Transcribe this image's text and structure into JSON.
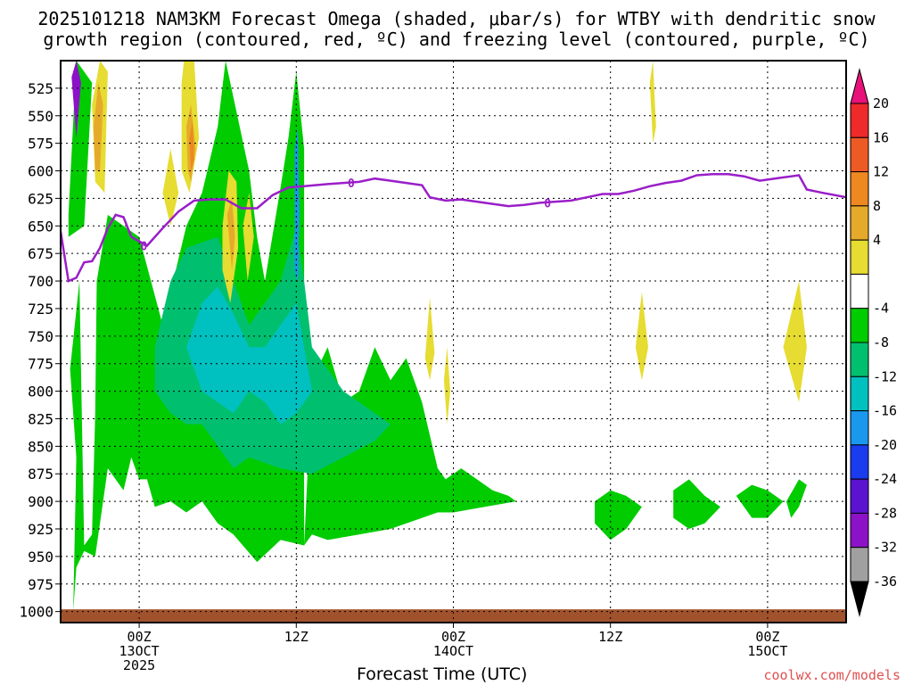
{
  "title_line1": "2025101218 NAM3KM Forecast Omega (shaded, μbar/s) for WTBY with dendritic snow",
  "title_line2": "growth region (contoured, red, ºC) and freezing level (contoured, purple, ºC)",
  "xlabel": "Forecast Time (UTC)",
  "credit": "coolwx.com/models",
  "chart_data": {
    "type": "heatmap",
    "y_axis": {
      "label": "",
      "ticks": [
        525,
        550,
        575,
        600,
        625,
        650,
        675,
        700,
        725,
        750,
        775,
        800,
        825,
        850,
        875,
        900,
        925,
        950,
        975,
        1000
      ],
      "range": [
        500,
        1010
      ],
      "inverted": true
    },
    "x_axis": {
      "range_hours": [
        -5,
        45
      ],
      "ticks": [
        {
          "hour": 0,
          "lines": [
            "00Z",
            "13OCT",
            "2025"
          ]
        },
        {
          "hour": 10,
          "lines": [
            "12Z"
          ]
        },
        {
          "hour": 20,
          "lines": [
            "00Z",
            "14OCT"
          ]
        },
        {
          "hour": 30,
          "lines": [
            "12Z"
          ]
        },
        {
          "hour": 40,
          "lines": [
            "00Z",
            "15OCT"
          ]
        }
      ]
    },
    "grid": true,
    "colorbar": {
      "labels": [
        "20",
        "16",
        "12",
        "8",
        "4",
        "-4",
        "-8",
        "-12",
        "-16",
        "-20",
        "-24",
        "-28",
        "-32",
        "-36"
      ],
      "colors": [
        "#e8127a",
        "#ee2a2a",
        "#ee5a24",
        "#ee8820",
        "#e6aa2a",
        "#e6dc32",
        "#ffffff",
        "#00cc00",
        "#00c070",
        "#00c0c0",
        "#1a98ee",
        "#1a3cee",
        "#5a14d0",
        "#8c12c8",
        "#a0a0a0",
        "#000000"
      ],
      "levels": [
        20,
        16,
        12,
        8,
        4,
        0,
        -4,
        -8,
        -12,
        -16,
        -20,
        -24,
        -28,
        -32,
        -36
      ]
    },
    "freezing_level": {
      "color": "#9a1ec8",
      "label": "0",
      "points": [
        [
          -5,
          655
        ],
        [
          -4.5,
          700
        ],
        [
          -4,
          697
        ],
        [
          -3.5,
          683
        ],
        [
          -3,
          682
        ],
        [
          -2.5,
          670
        ],
        [
          -2,
          652
        ],
        [
          -1.5,
          640
        ],
        [
          -1,
          642
        ],
        [
          -0.5,
          660
        ],
        [
          0.5,
          668
        ],
        [
          1.5,
          652
        ],
        [
          2.5,
          637
        ],
        [
          3.5,
          627
        ],
        [
          4.5,
          626
        ],
        [
          5.5,
          626
        ],
        [
          6.5,
          634
        ],
        [
          7.5,
          634
        ],
        [
          8.5,
          622
        ],
        [
          9.5,
          615
        ],
        [
          10.5,
          614
        ],
        [
          12,
          612
        ],
        [
          13,
          611
        ],
        [
          14,
          610
        ],
        [
          15,
          607
        ],
        [
          16,
          609
        ],
        [
          17,
          611
        ],
        [
          18,
          613
        ],
        [
          18.5,
          624
        ],
        [
          19.5,
          627
        ],
        [
          20.5,
          626
        ],
        [
          21.5,
          628
        ],
        [
          22.5,
          630
        ],
        [
          23.5,
          632
        ],
        [
          24.5,
          631
        ],
        [
          25.5,
          629
        ],
        [
          26.5,
          628
        ],
        [
          27.5,
          627
        ],
        [
          28.5,
          624
        ],
        [
          29.5,
          621
        ],
        [
          30.5,
          621
        ],
        [
          31.5,
          618
        ],
        [
          32.5,
          614
        ],
        [
          33.5,
          611
        ],
        [
          34.5,
          609
        ],
        [
          35.5,
          604
        ],
        [
          36.5,
          603
        ],
        [
          37.5,
          603
        ],
        [
          38.5,
          605
        ],
        [
          39,
          607
        ],
        [
          39.5,
          609
        ],
        [
          40,
          608
        ],
        [
          41,
          606
        ],
        [
          42,
          604
        ],
        [
          42.5,
          617
        ],
        [
          43.5,
          620
        ],
        [
          45,
          624
        ]
      ]
    },
    "omega_regions": [
      {
        "value": "-4",
        "color": "#00cc00",
        "points": [
          [
            -4.2,
            1000
          ],
          [
            -4,
            860
          ],
          [
            -4.4,
            780
          ],
          [
            -3.8,
            700
          ],
          [
            -3.5,
            940
          ],
          [
            -3,
            930
          ],
          [
            -2.8,
            820
          ],
          [
            -2.7,
            700
          ],
          [
            -2,
            640
          ],
          [
            0,
            660
          ],
          [
            1.5,
            740
          ],
          [
            3,
            650
          ],
          [
            4,
            620
          ],
          [
            5,
            560
          ],
          [
            5.5,
            500
          ],
          [
            7,
            600
          ],
          [
            7.5,
            660
          ],
          [
            8,
            700
          ],
          [
            9,
            615
          ],
          [
            9.5,
            570
          ],
          [
            10,
            510
          ],
          [
            10.5,
            580
          ],
          [
            10.5,
            940
          ],
          [
            11,
            790
          ],
          [
            12,
            760
          ],
          [
            13,
            810
          ],
          [
            14,
            800
          ],
          [
            15,
            760
          ],
          [
            16,
            790
          ],
          [
            17,
            770
          ],
          [
            18,
            810
          ],
          [
            18.5,
            840
          ],
          [
            19,
            870
          ],
          [
            19.5,
            880
          ],
          [
            20.5,
            870
          ],
          [
            21.5,
            880
          ],
          [
            22.5,
            890
          ],
          [
            23.5,
            895
          ],
          [
            24,
            900
          ],
          [
            22,
            905
          ],
          [
            20,
            910
          ],
          [
            19,
            910
          ],
          [
            16,
            925
          ],
          [
            14,
            930
          ],
          [
            12,
            935
          ],
          [
            11,
            930
          ],
          [
            10.5,
            940
          ],
          [
            9,
            935
          ],
          [
            7.5,
            955
          ],
          [
            6,
            930
          ],
          [
            5,
            920
          ],
          [
            4,
            900
          ],
          [
            3,
            910
          ],
          [
            2,
            900
          ],
          [
            1,
            905
          ],
          [
            0.5,
            880
          ],
          [
            0,
            880
          ],
          [
            -0.5,
            860
          ],
          [
            -1,
            890
          ],
          [
            -2,
            870
          ],
          [
            -2.8,
            950
          ],
          [
            -3.5,
            945
          ],
          [
            -4,
            960
          ]
        ]
      },
      {
        "value": "-4",
        "color": "#00cc00",
        "points": [
          [
            -4.5,
            640
          ],
          [
            -4,
            500
          ],
          [
            -3,
            520
          ],
          [
            -3.5,
            650
          ],
          [
            -4.5,
            660
          ]
        ]
      },
      {
        "value": "-4",
        "color": "#00cc00",
        "points": [
          [
            29,
            900
          ],
          [
            30,
            890
          ],
          [
            31,
            895
          ],
          [
            32,
            905
          ],
          [
            31,
            925
          ],
          [
            30,
            935
          ],
          [
            29,
            920
          ]
        ]
      },
      {
        "value": "-4",
        "color": "#00cc00",
        "points": [
          [
            34,
            890
          ],
          [
            35,
            880
          ],
          [
            36,
            895
          ],
          [
            37,
            905
          ],
          [
            36,
            920
          ],
          [
            35,
            925
          ],
          [
            34,
            915
          ]
        ]
      },
      {
        "value": "-4",
        "color": "#00cc00",
        "points": [
          [
            38,
            895
          ],
          [
            39,
            885
          ],
          [
            40,
            890
          ],
          [
            41,
            900
          ],
          [
            40,
            915
          ],
          [
            39,
            915
          ]
        ]
      },
      {
        "value": "-4",
        "color": "#00cc00",
        "points": [
          [
            41.2,
            900
          ],
          [
            42,
            880
          ],
          [
            42.5,
            885
          ],
          [
            42,
            905
          ],
          [
            41.5,
            915
          ]
        ]
      },
      {
        "value": "-8",
        "color": "#00c070",
        "points": [
          [
            1,
            760
          ],
          [
            2,
            700
          ],
          [
            3,
            670
          ],
          [
            5,
            660
          ],
          [
            6,
            700
          ],
          [
            7,
            740
          ],
          [
            8,
            720
          ],
          [
            9,
            700
          ],
          [
            10,
            650
          ],
          [
            10.5,
            700
          ],
          [
            11,
            760
          ],
          [
            12,
            780
          ],
          [
            13,
            800
          ],
          [
            14,
            810
          ],
          [
            15,
            820
          ],
          [
            16,
            830
          ],
          [
            15,
            845
          ],
          [
            13,
            860
          ],
          [
            11,
            875
          ],
          [
            9,
            870
          ],
          [
            7,
            860
          ],
          [
            6,
            870
          ],
          [
            5,
            850
          ],
          [
            4,
            830
          ],
          [
            3,
            830
          ],
          [
            2,
            820
          ],
          [
            1,
            800
          ]
        ]
      },
      {
        "value": "-12",
        "color": "#00c0c0",
        "points": [
          [
            3,
            760
          ],
          [
            4,
            720
          ],
          [
            5,
            705
          ],
          [
            6,
            730
          ],
          [
            7,
            760
          ],
          [
            8,
            760
          ],
          [
            9,
            740
          ],
          [
            10,
            720
          ],
          [
            10.5,
            760
          ],
          [
            11,
            800
          ],
          [
            10,
            820
          ],
          [
            9,
            830
          ],
          [
            8,
            810
          ],
          [
            7,
            800
          ],
          [
            6,
            820
          ],
          [
            5,
            810
          ],
          [
            4,
            800
          ]
        ]
      },
      {
        "value": "-16",
        "color": "#1a98ee",
        "points": [
          [
            9.9,
            580
          ],
          [
            10.1,
            560
          ],
          [
            10.2,
            640
          ],
          [
            10.1,
            700
          ],
          [
            9.9,
            690
          ]
        ]
      },
      {
        "value": "-28",
        "color": "#8c12c8",
        "points": [
          [
            -4.3,
            515
          ],
          [
            -4,
            500
          ],
          [
            -3.7,
            520
          ],
          [
            -4,
            570
          ]
        ]
      },
      {
        "value": "4",
        "color": "#e6dc32",
        "points": [
          [
            -3,
            540
          ],
          [
            -2.5,
            500
          ],
          [
            -2,
            510
          ],
          [
            -2.2,
            620
          ],
          [
            -2.8,
            610
          ]
        ]
      },
      {
        "value": "4",
        "color": "#e6dc32",
        "points": [
          [
            1.5,
            620
          ],
          [
            2,
            580
          ],
          [
            2.5,
            620
          ],
          [
            2,
            650
          ]
        ]
      },
      {
        "value": "4",
        "color": "#e6dc32",
        "points": [
          [
            2.7,
            520
          ],
          [
            3,
            480
          ],
          [
            3.5,
            500
          ],
          [
            3.8,
            570
          ],
          [
            3.2,
            620
          ],
          [
            2.7,
            600
          ]
        ]
      },
      {
        "value": "4",
        "color": "#e6dc32",
        "points": [
          [
            5.3,
            650
          ],
          [
            5.7,
            600
          ],
          [
            6.2,
            610
          ],
          [
            6.3,
            670
          ],
          [
            5.8,
            720
          ],
          [
            5.3,
            690
          ]
        ]
      },
      {
        "value": "4",
        "color": "#e6dc32",
        "points": [
          [
            6.6,
            650
          ],
          [
            7,
            620
          ],
          [
            7.3,
            660
          ],
          [
            6.9,
            700
          ]
        ]
      },
      {
        "value": "4",
        "color": "#e6dc32",
        "points": [
          [
            18.2,
            770
          ],
          [
            18.5,
            715
          ],
          [
            18.8,
            765
          ],
          [
            18.5,
            790
          ]
        ]
      },
      {
        "value": "4",
        "color": "#e6dc32",
        "points": [
          [
            19.4,
            790
          ],
          [
            19.6,
            760
          ],
          [
            19.8,
            800
          ],
          [
            19.6,
            830
          ]
        ]
      },
      {
        "value": "4",
        "color": "#e6dc32",
        "points": [
          [
            31.6,
            760
          ],
          [
            32,
            710
          ],
          [
            32.4,
            760
          ],
          [
            32,
            790
          ]
        ]
      },
      {
        "value": "4",
        "color": "#e6dc32",
        "points": [
          [
            41,
            760
          ],
          [
            42,
            700
          ],
          [
            42.5,
            760
          ],
          [
            42,
            810
          ]
        ]
      },
      {
        "value": "4",
        "color": "#e6dc32",
        "points": [
          [
            32.5,
            520
          ],
          [
            32.7,
            500
          ],
          [
            32.9,
            560
          ],
          [
            32.7,
            575
          ]
        ]
      },
      {
        "value": "8",
        "color": "#e6aa2a",
        "points": [
          [
            -2.9,
            560
          ],
          [
            -2.6,
            520
          ],
          [
            -2.3,
            540
          ],
          [
            -2.5,
            600
          ],
          [
            -2.8,
            600
          ]
        ]
      },
      {
        "value": "8",
        "color": "#e6aa2a",
        "points": [
          [
            3,
            560
          ],
          [
            3.3,
            540
          ],
          [
            3.6,
            580
          ],
          [
            3.3,
            610
          ],
          [
            3.1,
            600
          ]
        ]
      },
      {
        "value": "8",
        "color": "#e6aa2a",
        "points": [
          [
            5.6,
            640
          ],
          [
            5.9,
            625
          ],
          [
            6.1,
            660
          ],
          [
            5.9,
            690
          ]
        ]
      },
      {
        "value": "12",
        "color": "#ee8820",
        "points": [
          [
            3.2,
            570
          ],
          [
            3.4,
            555
          ],
          [
            3.5,
            590
          ],
          [
            3.3,
            600
          ]
        ]
      }
    ],
    "terrain": {
      "color": "#a0522d",
      "surface_pressure": 998
    }
  }
}
